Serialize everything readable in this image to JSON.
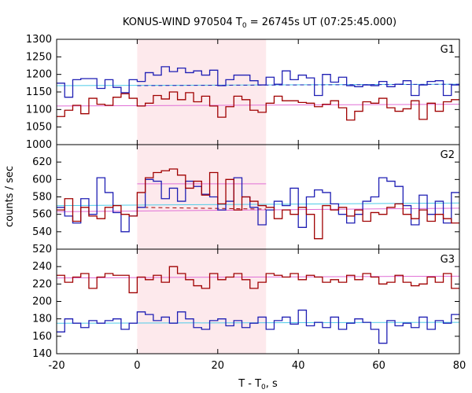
{
  "chart_data": {
    "type": "line",
    "title_main": "KONUS-WIND 970504 T",
    "title_sub": "0",
    "title_rest": " = 26745s UT (07:25:45.000)",
    "xlabel_main": "T - T",
    "xlabel_sub": "0",
    "xlabel_rest": ", s",
    "ylabel": "counts / sec",
    "xlim": [
      -20,
      80
    ],
    "x_ticks": [
      "-20",
      "0",
      "20",
      "40",
      "60",
      "80"
    ],
    "highlight_interval": [
      0,
      32
    ],
    "bin_edges": [
      -20,
      -18,
      -16,
      -14,
      -12,
      -10,
      -8,
      -6,
      -4,
      -2,
      0,
      2,
      4,
      6,
      8,
      10,
      12,
      14,
      16,
      18,
      20,
      22,
      24,
      26,
      28,
      30,
      32,
      34,
      36,
      38,
      40,
      42,
      44,
      46,
      48,
      50,
      52,
      54,
      56,
      58,
      60,
      62,
      64,
      66,
      68,
      70,
      72,
      74,
      76,
      78,
      80
    ],
    "colors": {
      "blue_series": "#1f1fb4",
      "red_series": "#a00000",
      "cyan_fit": "#4ecbe8",
      "pink_fit": "#e06ed6",
      "highlight": "#fde9ec"
    },
    "panels": [
      {
        "name": "G1",
        "ylim": [
          1000,
          1300
        ],
        "y_ticks": [
          "1000",
          "1050",
          "1100",
          "1150",
          "1200",
          "1250",
          "1300"
        ],
        "series": [
          {
            "color_key": "blue_series",
            "values": [
              1175,
              1135,
              1185,
              1188,
              1188,
              1160,
              1185,
              1163,
              1148,
              1185,
              1180,
              1205,
              1198,
              1222,
              1208,
              1218,
              1205,
              1210,
              1198,
              1212,
              1168,
              1185,
              1198,
              1198,
              1182,
              1170,
              1192,
              1172,
              1210,
              1185,
              1198,
              1190,
              1140,
              1200,
              1178,
              1192,
              1168,
              1165,
              1170,
              1168,
              1180,
              1165,
              1172,
              1182,
              1140,
              1170,
              1180,
              1182,
              1140,
              1170
            ]
          },
          {
            "color_key": "red_series",
            "values": [
              1080,
              1098,
              1112,
              1088,
              1132,
              1115,
              1112,
              1135,
              1145,
              1132,
              1110,
              1118,
              1140,
              1130,
              1150,
              1128,
              1148,
              1122,
              1138,
              1110,
              1078,
              1108,
              1138,
              1128,
              1098,
              1092,
              1118,
              1138,
              1125,
              1125,
              1120,
              1118,
              1108,
              1115,
              1125,
              1105,
              1070,
              1095,
              1122,
              1118,
              1132,
              1105,
              1095,
              1102,
              1125,
              1072,
              1118,
              1095,
              1122,
              1128
            ]
          }
        ],
        "fits": [
          {
            "color_key": "cyan_fit",
            "dashed": false,
            "x": [
              -20,
              80
            ],
            "y": [
              1168,
              1172
            ]
          },
          {
            "color_key": "pink_fit",
            "dashed": false,
            "x": [
              -20,
              80
            ],
            "y": [
              1110,
              1115
            ]
          },
          {
            "color_key": "blue_series",
            "dashed": true,
            "x": [
              0,
              80
            ],
            "y": [
              1168,
              1172
            ]
          }
        ]
      },
      {
        "name": "G2",
        "ylim": [
          520,
          640
        ],
        "y_ticks": [
          "520",
          "540",
          "560",
          "580",
          "600",
          "620"
        ],
        "series": [
          {
            "color_key": "blue_series",
            "values": [
              568,
              558,
              550,
              578,
              560,
              602,
              585,
              562,
              540,
              558,
              568,
              600,
              598,
              578,
              590,
              575,
              598,
              592,
              583,
              580,
              565,
              575,
              602,
              580,
              568,
              548,
              565,
              575,
              570,
              590,
              545,
              580,
              588,
              585,
              572,
              560,
              550,
              560,
              575,
              580,
              602,
              598,
              592,
              570,
              548,
              582,
              560,
              575,
              550,
              585
            ]
          },
          {
            "color_key": "red_series",
            "values": [
              565,
              578,
              552,
              568,
              558,
              555,
              568,
              570,
              560,
              558,
              585,
              602,
              608,
              610,
              612,
              605,
              590,
              598,
              582,
              608,
              572,
              600,
              565,
              580,
              575,
              570,
              568,
              555,
              565,
              560,
              568,
              560,
              532,
              570,
              565,
              568,
              558,
              565,
              552,
              562,
              560,
              568,
              572,
              560,
              555,
              565,
              552,
              560,
              555,
              550
            ]
          }
        ],
        "fits": [
          {
            "color_key": "cyan_fit",
            "dashed": false,
            "x": [
              -20,
              80
            ],
            "y": [
              570,
              573
            ]
          },
          {
            "color_key": "pink_fit",
            "dashed": false,
            "x": [
              -20,
              80
            ],
            "y": [
              563,
              567
            ]
          },
          {
            "color_key": "pink_fit",
            "dashed": false,
            "x": [
              0,
              32
            ],
            "y": [
              595,
              595
            ]
          },
          {
            "color_key": "red_series",
            "dashed": true,
            "x": [
              0,
              32
            ],
            "y": [
              568,
              566
            ]
          }
        ]
      },
      {
        "name": "G3",
        "ylim": [
          140,
          260
        ],
        "y_ticks": [
          "140",
          "160",
          "180",
          "200",
          "220",
          "240"
        ],
        "series": [
          {
            "color_key": "blue_series",
            "values": [
              165,
              180,
              175,
              170,
              178,
              175,
              178,
              180,
              168,
              175,
              188,
              185,
              178,
              182,
              175,
              188,
              180,
              170,
              168,
              178,
              180,
              172,
              178,
              170,
              175,
              182,
              168,
              178,
              182,
              174,
              190,
              172,
              176,
              170,
              182,
              168,
              175,
              180,
              176,
              168,
              152,
              178,
              172,
              175,
              170,
              182,
              168,
              178,
              175,
              185
            ]
          },
          {
            "color_key": "red_series",
            "values": [
              230,
              222,
              228,
              232,
              215,
              228,
              232,
              230,
              230,
              210,
              228,
              225,
              230,
              222,
              240,
              232,
              225,
              218,
              215,
              232,
              225,
              228,
              232,
              225,
              215,
              222,
              232,
              230,
              228,
              232,
              225,
              230,
              228,
              222,
              225,
              222,
              230,
              225,
              232,
              228,
              220,
              222,
              230,
              222,
              218,
              220,
              228,
              222,
              232,
              215
            ]
          }
        ],
        "fits": [
          {
            "color_key": "cyan_fit",
            "dashed": false,
            "x": [
              -20,
              80
            ],
            "y": [
              175,
              176
            ]
          },
          {
            "color_key": "pink_fit",
            "dashed": false,
            "x": [
              -20,
              80
            ],
            "y": [
              227,
              229
            ]
          }
        ]
      }
    ]
  }
}
